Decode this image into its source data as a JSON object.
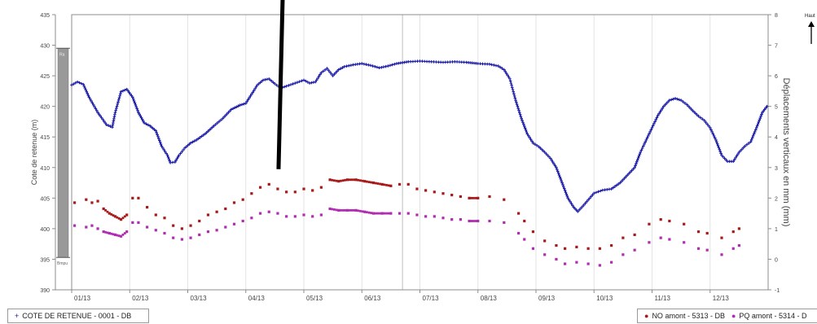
{
  "chart_data": {
    "type": "scatter",
    "x_ticks": [
      "01/13",
      "02/13",
      "03/13",
      "04/13",
      "05/13",
      "06/13",
      "07/13",
      "08/13",
      "09/13",
      "10/13",
      "11/13",
      "12/13"
    ],
    "ylabel": "Cote de retenue (m)",
    "ylim": [
      390,
      435
    ],
    "y_ticks": [
      390,
      395,
      400,
      405,
      410,
      415,
      420,
      425,
      430,
      435
    ],
    "y2label": "Déplacements verticaux en mm (mm)",
    "y2lim": [
      -1,
      8
    ],
    "y2_ticks": [
      -1,
      0,
      1,
      2,
      3,
      4,
      5,
      6,
      7,
      8
    ],
    "top_right_label": "Haut",
    "gauge": {
      "top_label": "Ra",
      "bottom_label": "Bmpu"
    },
    "grid": true,
    "legend": {
      "left": [
        "COTE DE RETENUE - 0001 - DB"
      ],
      "right": [
        "NO amont - 5313 - DB",
        "PQ amont - 5314 - D"
      ]
    },
    "series": [
      {
        "name": "COTE DE RETENUE - 0001 - DB",
        "axis": "left",
        "color": "#1a1aa6",
        "marker": "+",
        "points": [
          [
            0.0,
            423.5
          ],
          [
            0.1,
            424.0
          ],
          [
            0.2,
            423.6
          ],
          [
            0.3,
            421.5
          ],
          [
            0.45,
            419.0
          ],
          [
            0.6,
            417.0
          ],
          [
            0.7,
            416.6
          ],
          [
            0.75,
            419.0
          ],
          [
            0.85,
            422.4
          ],
          [
            0.95,
            422.8
          ],
          [
            1.05,
            421.5
          ],
          [
            1.15,
            419.0
          ],
          [
            1.25,
            417.3
          ],
          [
            1.35,
            416.8
          ],
          [
            1.45,
            416.0
          ],
          [
            1.55,
            413.5
          ],
          [
            1.65,
            412.0
          ],
          [
            1.7,
            410.8
          ],
          [
            1.78,
            410.9
          ],
          [
            1.85,
            412.0
          ],
          [
            1.95,
            413.2
          ],
          [
            2.05,
            414.0
          ],
          [
            2.15,
            414.5
          ],
          [
            2.3,
            415.5
          ],
          [
            2.45,
            416.8
          ],
          [
            2.6,
            418.0
          ],
          [
            2.75,
            419.5
          ],
          [
            2.9,
            420.2
          ],
          [
            3.0,
            420.5
          ],
          [
            3.1,
            422.0
          ],
          [
            3.2,
            423.5
          ],
          [
            3.3,
            424.3
          ],
          [
            3.4,
            424.5
          ],
          [
            3.5,
            423.7
          ],
          [
            3.6,
            423.0
          ],
          [
            3.7,
            423.3
          ],
          [
            3.85,
            423.8
          ],
          [
            4.0,
            424.3
          ],
          [
            4.1,
            423.8
          ],
          [
            4.2,
            424.0
          ],
          [
            4.3,
            425.5
          ],
          [
            4.4,
            426.2
          ],
          [
            4.5,
            425.0
          ],
          [
            4.6,
            426.0
          ],
          [
            4.7,
            426.5
          ],
          [
            4.85,
            426.8
          ],
          [
            5.0,
            427.0
          ],
          [
            5.15,
            426.7
          ],
          [
            5.3,
            426.3
          ],
          [
            5.45,
            426.6
          ],
          [
            5.6,
            427.0
          ],
          [
            5.8,
            427.3
          ],
          [
            6.0,
            427.4
          ],
          [
            6.2,
            427.3
          ],
          [
            6.4,
            427.2
          ],
          [
            6.6,
            427.3
          ],
          [
            6.8,
            427.2
          ],
          [
            7.0,
            427.0
          ],
          [
            7.2,
            426.9
          ],
          [
            7.35,
            426.6
          ],
          [
            7.45,
            426.0
          ],
          [
            7.55,
            424.5
          ],
          [
            7.65,
            421.0
          ],
          [
            7.75,
            418.0
          ],
          [
            7.85,
            415.5
          ],
          [
            7.95,
            414.0
          ],
          [
            8.05,
            413.4
          ],
          [
            8.15,
            412.5
          ],
          [
            8.25,
            411.5
          ],
          [
            8.35,
            410.0
          ],
          [
            8.45,
            407.5
          ],
          [
            8.55,
            405.0
          ],
          [
            8.65,
            403.5
          ],
          [
            8.72,
            402.8
          ],
          [
            8.8,
            403.6
          ],
          [
            8.9,
            404.7
          ],
          [
            9.0,
            405.8
          ],
          [
            9.15,
            406.3
          ],
          [
            9.3,
            406.5
          ],
          [
            9.45,
            407.5
          ],
          [
            9.6,
            409.0
          ],
          [
            9.7,
            410.0
          ],
          [
            9.8,
            412.5
          ],
          [
            9.9,
            414.5
          ],
          [
            10.0,
            416.5
          ],
          [
            10.1,
            418.5
          ],
          [
            10.2,
            420.0
          ],
          [
            10.3,
            421.0
          ],
          [
            10.4,
            421.3
          ],
          [
            10.5,
            421.0
          ],
          [
            10.6,
            420.3
          ],
          [
            10.7,
            419.3
          ],
          [
            10.8,
            418.4
          ],
          [
            10.9,
            417.7
          ],
          [
            11.0,
            416.5
          ],
          [
            11.1,
            414.5
          ],
          [
            11.2,
            412.0
          ],
          [
            11.3,
            411.0
          ],
          [
            11.4,
            411.0
          ],
          [
            11.5,
            412.5
          ],
          [
            11.6,
            413.5
          ],
          [
            11.7,
            414.2
          ],
          [
            11.8,
            416.5
          ],
          [
            11.9,
            419.0
          ],
          [
            11.98,
            420.0
          ]
        ]
      },
      {
        "name": "NO amont - 5313 - DB",
        "axis": "right",
        "color": "#a81a1a",
        "marker": "dot",
        "points": [
          [
            0.05,
            1.85
          ],
          [
            0.25,
            1.95
          ],
          [
            0.35,
            1.85
          ],
          [
            0.45,
            1.9
          ],
          [
            0.55,
            1.65
          ],
          [
            0.65,
            1.5
          ],
          [
            0.75,
            1.4
          ],
          [
            0.85,
            1.3
          ],
          [
            0.95,
            1.45
          ],
          [
            1.05,
            2.0
          ],
          [
            1.15,
            2.0
          ],
          [
            1.3,
            1.7
          ],
          [
            1.45,
            1.45
          ],
          [
            1.6,
            1.35
          ],
          [
            1.75,
            1.1
          ],
          [
            1.9,
            1.0
          ],
          [
            2.05,
            1.1
          ],
          [
            2.2,
            1.25
          ],
          [
            2.35,
            1.45
          ],
          [
            2.5,
            1.55
          ],
          [
            2.65,
            1.65
          ],
          [
            2.8,
            1.85
          ],
          [
            2.95,
            1.95
          ],
          [
            3.1,
            2.15
          ],
          [
            3.25,
            2.35
          ],
          [
            3.4,
            2.45
          ],
          [
            3.55,
            2.3
          ],
          [
            3.7,
            2.2
          ],
          [
            3.85,
            2.2
          ],
          [
            4.0,
            2.3
          ],
          [
            4.15,
            2.25
          ],
          [
            4.3,
            2.35
          ],
          [
            4.45,
            2.6
          ],
          [
            4.6,
            2.55
          ],
          [
            4.75,
            2.6
          ],
          [
            4.9,
            2.6
          ],
          [
            5.05,
            2.55
          ],
          [
            5.2,
            2.5
          ],
          [
            5.35,
            2.45
          ],
          [
            5.5,
            2.4
          ],
          [
            5.65,
            2.45
          ],
          [
            5.8,
            2.45
          ],
          [
            5.95,
            2.3
          ],
          [
            6.1,
            2.25
          ],
          [
            6.25,
            2.2
          ],
          [
            6.4,
            2.15
          ],
          [
            6.55,
            2.1
          ],
          [
            6.7,
            2.05
          ],
          [
            6.85,
            2.0
          ],
          [
            7.0,
            2.0
          ],
          [
            7.2,
            2.05
          ],
          [
            7.45,
            1.95
          ],
          [
            7.7,
            1.5
          ],
          [
            7.8,
            1.25
          ],
          [
            7.95,
            0.9
          ],
          [
            8.15,
            0.6
          ],
          [
            8.35,
            0.45
          ],
          [
            8.5,
            0.35
          ],
          [
            8.7,
            0.4
          ],
          [
            8.9,
            0.35
          ],
          [
            9.1,
            0.35
          ],
          [
            9.3,
            0.45
          ],
          [
            9.5,
            0.7
          ],
          [
            9.7,
            0.8
          ],
          [
            9.95,
            1.15
          ],
          [
            10.15,
            1.3
          ],
          [
            10.3,
            1.25
          ],
          [
            10.55,
            1.15
          ],
          [
            10.8,
            0.9
          ],
          [
            10.95,
            0.85
          ],
          [
            11.2,
            0.7
          ],
          [
            11.4,
            0.9
          ],
          [
            11.5,
            1.0
          ]
        ]
      },
      {
        "name": "PQ amont - 5314 - D",
        "axis": "right",
        "color": "#b02cb0",
        "marker": "dot",
        "points": [
          [
            0.05,
            1.1
          ],
          [
            0.25,
            1.05
          ],
          [
            0.35,
            1.1
          ],
          [
            0.45,
            1.0
          ],
          [
            0.55,
            0.9
          ],
          [
            0.65,
            0.85
          ],
          [
            0.75,
            0.8
          ],
          [
            0.85,
            0.75
          ],
          [
            0.95,
            0.9
          ],
          [
            1.05,
            1.2
          ],
          [
            1.15,
            1.2
          ],
          [
            1.3,
            1.05
          ],
          [
            1.45,
            0.95
          ],
          [
            1.6,
            0.85
          ],
          [
            1.75,
            0.7
          ],
          [
            1.9,
            0.65
          ],
          [
            2.05,
            0.7
          ],
          [
            2.2,
            0.8
          ],
          [
            2.35,
            0.9
          ],
          [
            2.5,
            0.95
          ],
          [
            2.65,
            1.05
          ],
          [
            2.8,
            1.15
          ],
          [
            2.95,
            1.25
          ],
          [
            3.1,
            1.35
          ],
          [
            3.25,
            1.5
          ],
          [
            3.4,
            1.55
          ],
          [
            3.55,
            1.5
          ],
          [
            3.7,
            1.4
          ],
          [
            3.85,
            1.4
          ],
          [
            4.0,
            1.45
          ],
          [
            4.15,
            1.4
          ],
          [
            4.3,
            1.45
          ],
          [
            4.45,
            1.65
          ],
          [
            4.6,
            1.6
          ],
          [
            4.75,
            1.6
          ],
          [
            4.9,
            1.6
          ],
          [
            5.05,
            1.55
          ],
          [
            5.2,
            1.5
          ],
          [
            5.35,
            1.5
          ],
          [
            5.5,
            1.5
          ],
          [
            5.65,
            1.5
          ],
          [
            5.8,
            1.5
          ],
          [
            5.95,
            1.45
          ],
          [
            6.1,
            1.4
          ],
          [
            6.25,
            1.4
          ],
          [
            6.4,
            1.35
          ],
          [
            6.55,
            1.3
          ],
          [
            6.7,
            1.3
          ],
          [
            6.85,
            1.25
          ],
          [
            7.0,
            1.25
          ],
          [
            7.2,
            1.25
          ],
          [
            7.45,
            1.2
          ],
          [
            7.7,
            0.85
          ],
          [
            7.8,
            0.65
          ],
          [
            7.95,
            0.35
          ],
          [
            8.15,
            0.15
          ],
          [
            8.35,
            0.0
          ],
          [
            8.5,
            -0.15
          ],
          [
            8.7,
            -0.1
          ],
          [
            8.9,
            -0.15
          ],
          [
            9.1,
            -0.2
          ],
          [
            9.3,
            -0.1
          ],
          [
            9.5,
            0.15
          ],
          [
            9.7,
            0.3
          ],
          [
            9.95,
            0.55
          ],
          [
            10.15,
            0.7
          ],
          [
            10.3,
            0.65
          ],
          [
            10.55,
            0.55
          ],
          [
            10.8,
            0.35
          ],
          [
            10.95,
            0.3
          ],
          [
            11.2,
            0.15
          ],
          [
            11.4,
            0.35
          ],
          [
            11.5,
            0.45
          ]
        ]
      }
    ],
    "annotations": [
      {
        "type": "line",
        "color": "#000000",
        "from_x": 3.55,
        "from_y2": 3.0,
        "direction": "up-out-of-view"
      }
    ]
  }
}
